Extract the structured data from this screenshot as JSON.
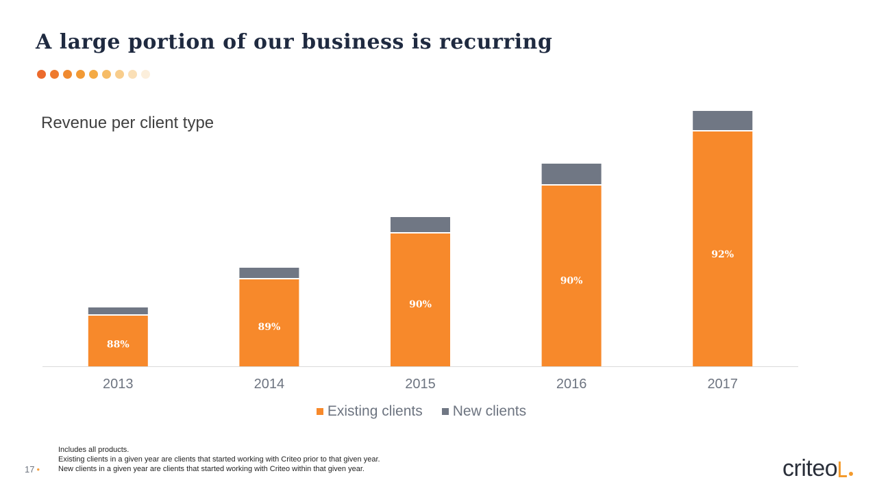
{
  "slide": {
    "title": "A large portion of our business is recurring",
    "page_number": "17",
    "dot_colors": [
      "#ec6a2c",
      "#ee7a2e",
      "#f08a30",
      "#f29a34",
      "#f4aa44",
      "#f6bc66",
      "#f8cd8c",
      "#fadfb6",
      "#fcefdc"
    ],
    "footnotes": [
      "Includes all products.",
      "Existing clients in a given year are clients that started working with Criteo prior to that given year.",
      "New clients in a given year are clients that started working with Criteo within that given year."
    ],
    "logo_text": "criteo"
  },
  "chart_data": {
    "type": "bar",
    "stacked": true,
    "title": "Revenue per client type",
    "categories": [
      "2013",
      "2014",
      "2015",
      "2016",
      "2017"
    ],
    "series": [
      {
        "name": "Existing clients",
        "color": "#f7892b",
        "values": [
          74,
          127,
          194,
          264,
          343
        ]
      },
      {
        "name": "New clients",
        "color": "#707784",
        "values": [
          10,
          15,
          22,
          30,
          28
        ]
      }
    ],
    "data_labels": [
      "88%",
      "89%",
      "90%",
      "90%",
      "92%"
    ],
    "ylim": [
      0,
      375
    ],
    "grid": false,
    "legend": "bottom-center"
  }
}
